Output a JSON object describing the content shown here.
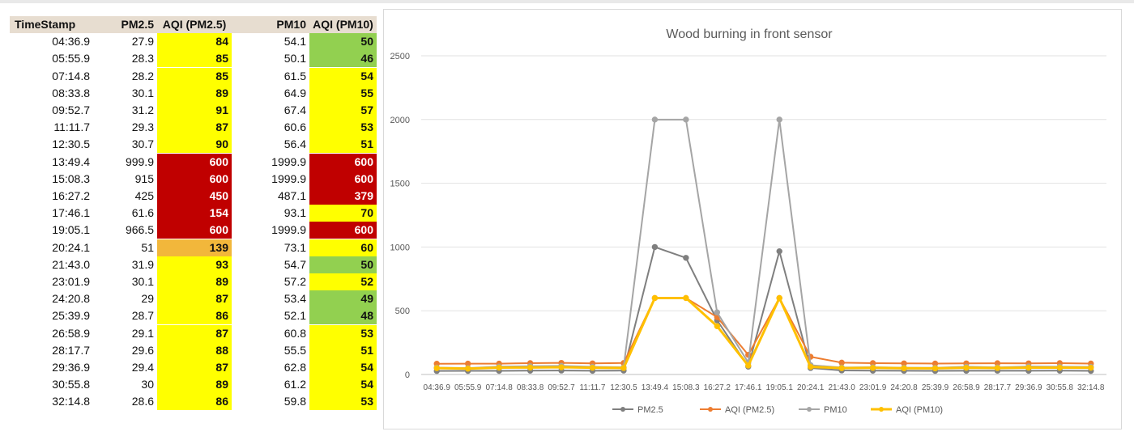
{
  "table": {
    "headers": [
      "TimeStamp",
      "PM2.5",
      "AQI (PM2.5)",
      "PM10",
      "AQI (PM10)"
    ],
    "rows": [
      {
        "time": "04:36.9",
        "pm25": "27.9",
        "aqi25": "84",
        "aqi25_level": "yellow",
        "pm10": "54.1",
        "aqi10": "50",
        "aqi10_level": "green"
      },
      {
        "time": "05:55.9",
        "pm25": "28.3",
        "aqi25": "85",
        "aqi25_level": "yellow",
        "pm10": "50.1",
        "aqi10": "46",
        "aqi10_level": "green"
      },
      {
        "time": "07:14.8",
        "pm25": "28.2",
        "aqi25": "85",
        "aqi25_level": "yellow",
        "pm10": "61.5",
        "aqi10": "54",
        "aqi10_level": "yellow"
      },
      {
        "time": "08:33.8",
        "pm25": "30.1",
        "aqi25": "89",
        "aqi25_level": "yellow",
        "pm10": "64.9",
        "aqi10": "55",
        "aqi10_level": "yellow"
      },
      {
        "time": "09:52.7",
        "pm25": "31.2",
        "aqi25": "91",
        "aqi25_level": "yellow",
        "pm10": "67.4",
        "aqi10": "57",
        "aqi10_level": "yellow"
      },
      {
        "time": "11:11.7",
        "pm25": "29.3",
        "aqi25": "87",
        "aqi25_level": "yellow",
        "pm10": "60.6",
        "aqi10": "53",
        "aqi10_level": "yellow"
      },
      {
        "time": "12:30.5",
        "pm25": "30.7",
        "aqi25": "90",
        "aqi25_level": "yellow",
        "pm10": "56.4",
        "aqi10": "51",
        "aqi10_level": "yellow"
      },
      {
        "time": "13:49.4",
        "pm25": "999.9",
        "aqi25": "600",
        "aqi25_level": "red",
        "pm10": "1999.9",
        "aqi10": "600",
        "aqi10_level": "red"
      },
      {
        "time": "15:08.3",
        "pm25": "915",
        "aqi25": "600",
        "aqi25_level": "red",
        "pm10": "1999.9",
        "aqi10": "600",
        "aqi10_level": "red"
      },
      {
        "time": "16:27.2",
        "pm25": "425",
        "aqi25": "450",
        "aqi25_level": "red",
        "pm10": "487.1",
        "aqi10": "379",
        "aqi10_level": "red"
      },
      {
        "time": "17:46.1",
        "pm25": "61.6",
        "aqi25": "154",
        "aqi25_level": "red",
        "pm10": "93.1",
        "aqi10": "70",
        "aqi10_level": "yellow"
      },
      {
        "time": "19:05.1",
        "pm25": "966.5",
        "aqi25": "600",
        "aqi25_level": "red",
        "pm10": "1999.9",
        "aqi10": "600",
        "aqi10_level": "red"
      },
      {
        "time": "20:24.1",
        "pm25": "51",
        "aqi25": "139",
        "aqi25_level": "orange",
        "pm10": "73.1",
        "aqi10": "60",
        "aqi10_level": "yellow"
      },
      {
        "time": "21:43.0",
        "pm25": "31.9",
        "aqi25": "93",
        "aqi25_level": "yellow",
        "pm10": "54.7",
        "aqi10": "50",
        "aqi10_level": "green"
      },
      {
        "time": "23:01.9",
        "pm25": "30.1",
        "aqi25": "89",
        "aqi25_level": "yellow",
        "pm10": "57.2",
        "aqi10": "52",
        "aqi10_level": "yellow"
      },
      {
        "time": "24:20.8",
        "pm25": "29",
        "aqi25": "87",
        "aqi25_level": "yellow",
        "pm10": "53.4",
        "aqi10": "49",
        "aqi10_level": "green"
      },
      {
        "time": "25:39.9",
        "pm25": "28.7",
        "aqi25": "86",
        "aqi25_level": "yellow",
        "pm10": "52.1",
        "aqi10": "48",
        "aqi10_level": "green"
      },
      {
        "time": "26:58.9",
        "pm25": "29.1",
        "aqi25": "87",
        "aqi25_level": "yellow",
        "pm10": "60.8",
        "aqi10": "53",
        "aqi10_level": "yellow"
      },
      {
        "time": "28:17.7",
        "pm25": "29.6",
        "aqi25": "88",
        "aqi25_level": "yellow",
        "pm10": "55.5",
        "aqi10": "51",
        "aqi10_level": "yellow"
      },
      {
        "time": "29:36.9",
        "pm25": "29.4",
        "aqi25": "87",
        "aqi25_level": "yellow",
        "pm10": "62.8",
        "aqi10": "54",
        "aqi10_level": "yellow"
      },
      {
        "time": "30:55.8",
        "pm25": "30",
        "aqi25": "89",
        "aqi25_level": "yellow",
        "pm10": "61.2",
        "aqi10": "54",
        "aqi10_level": "yellow"
      },
      {
        "time": "32:14.8",
        "pm25": "28.6",
        "aqi25": "86",
        "aqi25_level": "yellow",
        "pm10": "59.8",
        "aqi10": "53",
        "aqi10_level": "yellow"
      }
    ]
  },
  "colors": {
    "yellow": "#ffff00",
    "green": "#92d050",
    "red": "#c00000",
    "orange": "#f2b73b",
    "header_bg": "#e7ddd0"
  },
  "chart_data": {
    "type": "line",
    "title": "Wood burning in front sensor",
    "xlabel": "",
    "ylabel": "",
    "ylim": [
      0,
      2500
    ],
    "yticks": [
      0,
      500,
      1000,
      1500,
      2000,
      2500
    ],
    "grid": true,
    "legend_position": "bottom",
    "x": [
      "04:36.9",
      "05:55.9",
      "07:14.8",
      "08:33.8",
      "09:52.7",
      "11:11.7",
      "12:30.5",
      "13:49.4",
      "15:08.3",
      "16:27.2",
      "17:46.1",
      "19:05.1",
      "20:24.1",
      "21:43.0",
      "23:01.9",
      "24:20.8",
      "25:39.9",
      "26:58.9",
      "28:17.7",
      "29:36.9",
      "30:55.8",
      "32:14.8"
    ],
    "series": [
      {
        "name": "PM2.5",
        "color": "#7f7f7f",
        "marker": "circle",
        "values": [
          27.9,
          28.3,
          28.2,
          30.1,
          31.2,
          29.3,
          30.7,
          999.9,
          915,
          425,
          61.6,
          966.5,
          51,
          31.9,
          30.1,
          29,
          28.7,
          29.1,
          29.6,
          29.4,
          30,
          28.6
        ]
      },
      {
        "name": "AQI (PM2.5)",
        "color": "#ed7d31",
        "marker": "circle",
        "values": [
          84,
          85,
          85,
          89,
          91,
          87,
          90,
          600,
          600,
          450,
          154,
          600,
          139,
          93,
          89,
          87,
          86,
          87,
          88,
          87,
          89,
          86
        ]
      },
      {
        "name": "PM10",
        "color": "#a5a5a5",
        "marker": "circle",
        "values": [
          54.1,
          50.1,
          61.5,
          64.9,
          67.4,
          60.6,
          56.4,
          1999.9,
          1999.9,
          487.1,
          93.1,
          1999.9,
          73.1,
          54.7,
          57.2,
          53.4,
          52.1,
          60.8,
          55.5,
          62.8,
          61.2,
          59.8
        ]
      },
      {
        "name": "AQI (PM10)",
        "color": "#ffc000",
        "marker": "circle",
        "values": [
          50,
          46,
          54,
          55,
          57,
          53,
          51,
          600,
          600,
          379,
          70,
          600,
          60,
          50,
          52,
          49,
          48,
          53,
          51,
          54,
          54,
          53
        ]
      }
    ]
  }
}
